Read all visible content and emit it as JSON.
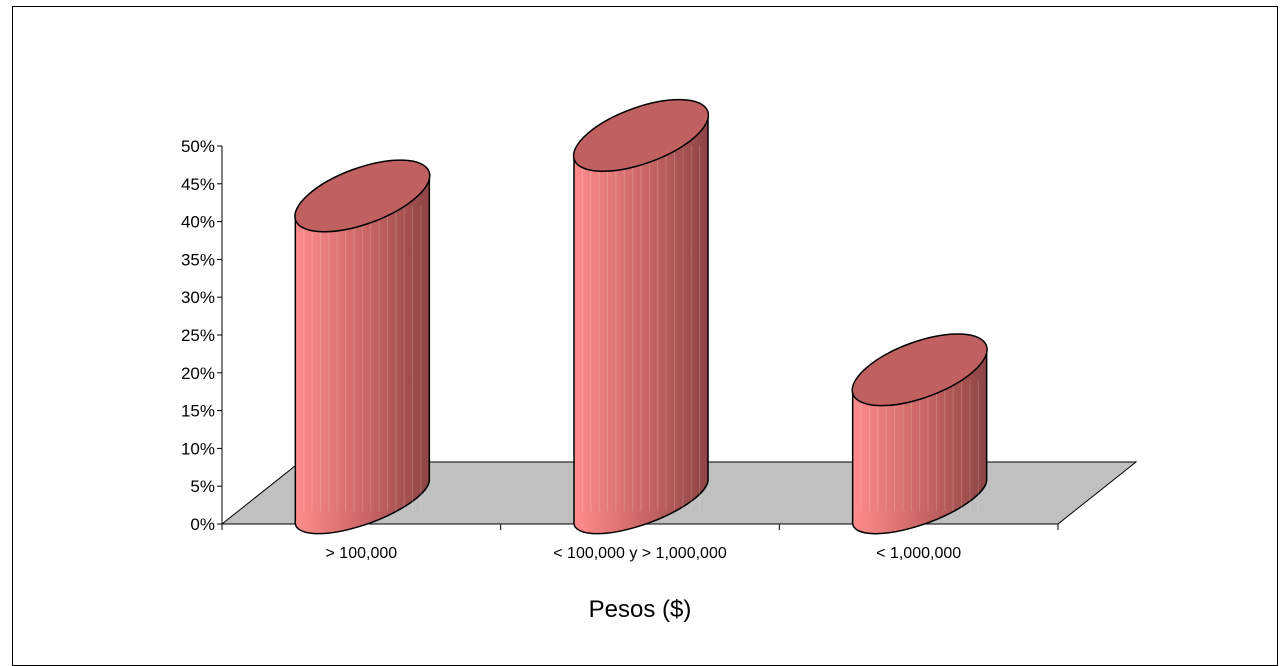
{
  "chart_data": {
    "type": "bar",
    "bar_shape": "cylinder",
    "categories": [
      "> 100,000",
      "< 100,000 y > 1,000,000",
      "< 1,000,000"
    ],
    "values": [
      38.5,
      46.5,
      15.5
    ],
    "value_unit": "%",
    "title": "",
    "xlabel": "Pesos ($)",
    "ylabel": "",
    "ylim": [
      0,
      50
    ],
    "yticks": [
      "0%",
      "5%",
      "10%",
      "15%",
      "20%",
      "25%",
      "30%",
      "35%",
      "40%",
      "45%",
      "50%"
    ],
    "grid": false,
    "legend": "none",
    "colors": {
      "bar_front_light": "#ff8c8c",
      "bar_front_dark": "#8c4444",
      "bar_top": "#c06060",
      "floor": "#c0c0c0",
      "outline": "#000000"
    }
  }
}
